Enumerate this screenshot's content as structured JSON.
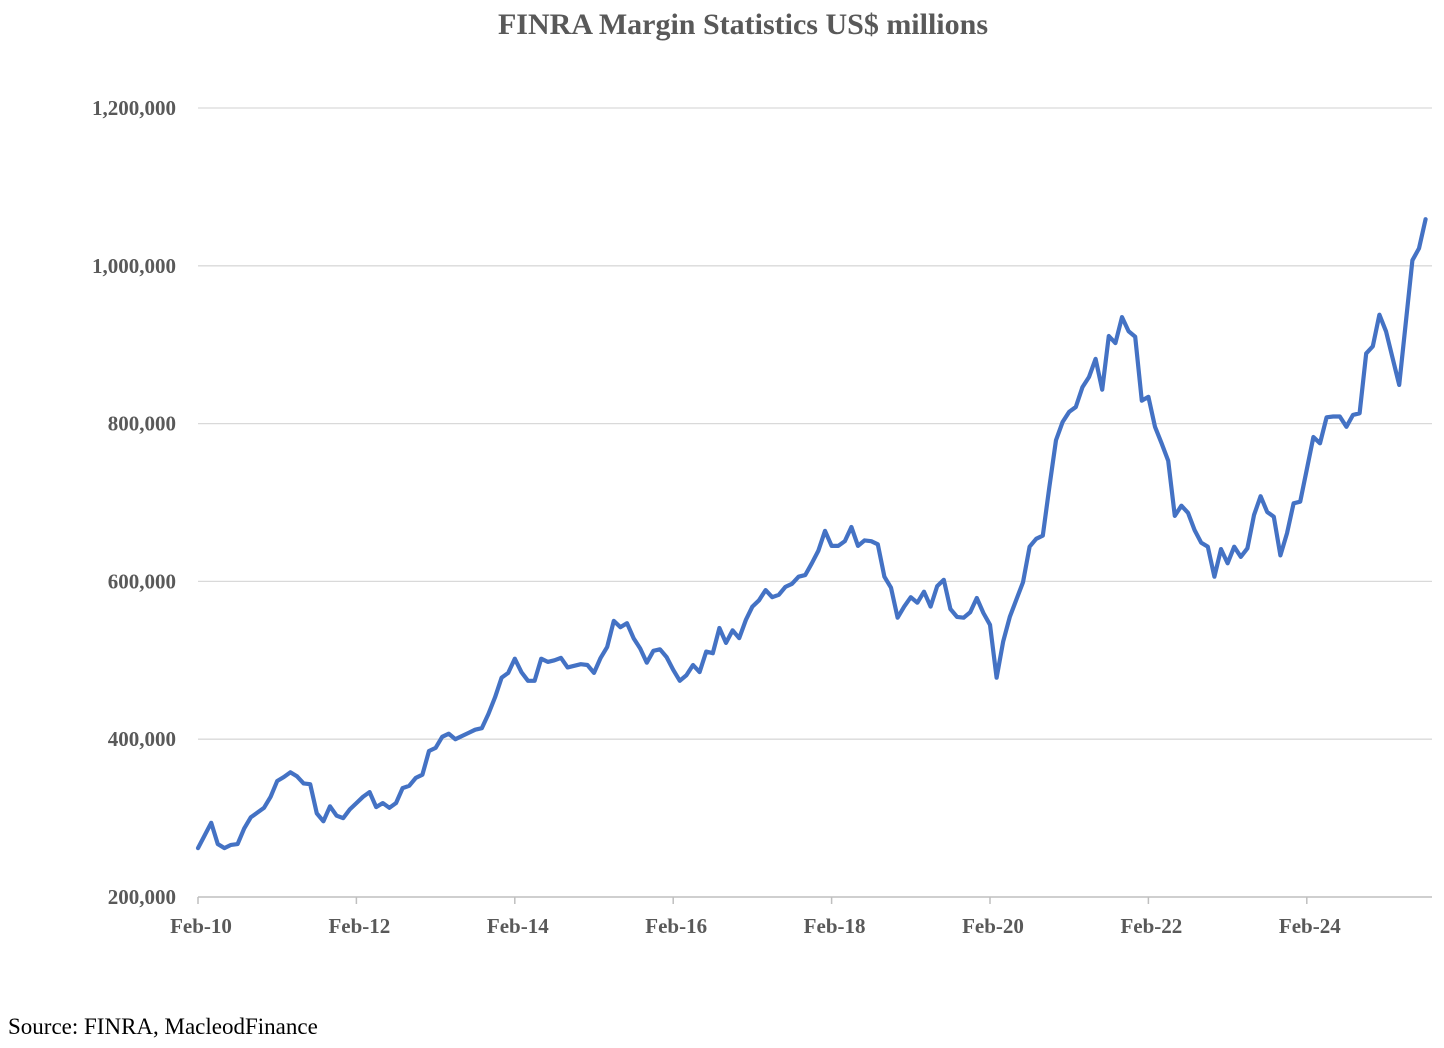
{
  "chart_data": {
    "type": "line",
    "title": "FINRA Margin Statistics US$ millions",
    "xlabel": "",
    "ylabel": "",
    "ylim": [
      200000,
      1200000
    ],
    "yticks": [
      "200,000",
      "400,000",
      "600,000",
      "800,000",
      "1,000,000",
      "1,200,000"
    ],
    "ytick_values": [
      200000,
      400000,
      600000,
      800000,
      1000000,
      1200000
    ],
    "xticks": [
      "Feb-10",
      "Feb-12",
      "Feb-14",
      "Feb-16",
      "Feb-18",
      "Feb-20",
      "Feb-22",
      "Feb-24"
    ],
    "xtick_dates": [
      "2010-02",
      "2012-02",
      "2014-02",
      "2016-02",
      "2018-02",
      "2020-02",
      "2022-02",
      "2024-02"
    ],
    "grid": "horizontal",
    "legend": "none",
    "line_color": "#4472C4",
    "frequency": "monthly",
    "values_by_year": {
      "2010": [
        null,
        262000,
        278000,
        294000,
        267000,
        262000,
        266000,
        267000,
        287000,
        301000,
        307000,
        313000
      ],
      "2011": [
        327000,
        347000,
        352000,
        358000,
        353000,
        344000,
        343000,
        306000,
        296000,
        315000,
        303000,
        300000
      ],
      "2012": [
        311000,
        319000,
        327000,
        333000,
        314000,
        319000,
        313000,
        319000,
        338000,
        341000,
        351000,
        355000
      ],
      "2013": [
        385000,
        389000,
        403000,
        407000,
        400000,
        404000,
        408000,
        412000,
        414000,
        432000,
        453000,
        478000
      ],
      "2014": [
        484000,
        502000,
        485000,
        474000,
        474000,
        502000,
        498000,
        500000,
        503000,
        491000,
        493000,
        495000
      ],
      "2015": [
        494000,
        484000,
        503000,
        517000,
        550000,
        542000,
        547000,
        528000,
        515000,
        497000,
        512000,
        514000
      ],
      "2016": [
        504000,
        488000,
        474000,
        481000,
        494000,
        485000,
        511000,
        509000,
        541000,
        522000,
        538000,
        528000
      ],
      "2017": [
        551000,
        568000,
        576000,
        589000,
        580000,
        583000,
        593000,
        597000,
        606000,
        608000,
        623000,
        639000
      ],
      "2018": [
        664000,
        645000,
        645000,
        651000,
        669000,
        645000,
        652000,
        651000,
        647000,
        606000,
        592000,
        554000
      ],
      "2019": [
        568000,
        580000,
        573000,
        587000,
        568000,
        594000,
        602000,
        565000,
        555000,
        554000,
        561000,
        579000
      ],
      "2020": [
        560000,
        545000,
        478000,
        524000,
        555000,
        577000,
        599000,
        644000,
        654000,
        658000,
        720000,
        779000
      ],
      "2021": [
        802000,
        815000,
        821000,
        846000,
        859000,
        882000,
        843000,
        911000,
        902000,
        935000,
        917000,
        910000
      ],
      "2022": [
        829000,
        834000,
        796000,
        775000,
        753000,
        683000,
        696000,
        687000,
        665000,
        649000,
        644000,
        606000
      ],
      "2023": [
        641000,
        623000,
        644000,
        631000,
        642000,
        684000,
        708000,
        688000,
        682000,
        633000,
        661000,
        699000
      ],
      "2024": [
        701000,
        742000,
        783000,
        775000,
        808000,
        809000,
        809000,
        796000,
        811000,
        813000,
        889000,
        898000
      ],
      "2025": [
        938000,
        917000,
        883000,
        849000,
        928000,
        1007000,
        1022000,
        1059000
      ]
    }
  },
  "source": "Source: FINRA, MacleodFinance"
}
